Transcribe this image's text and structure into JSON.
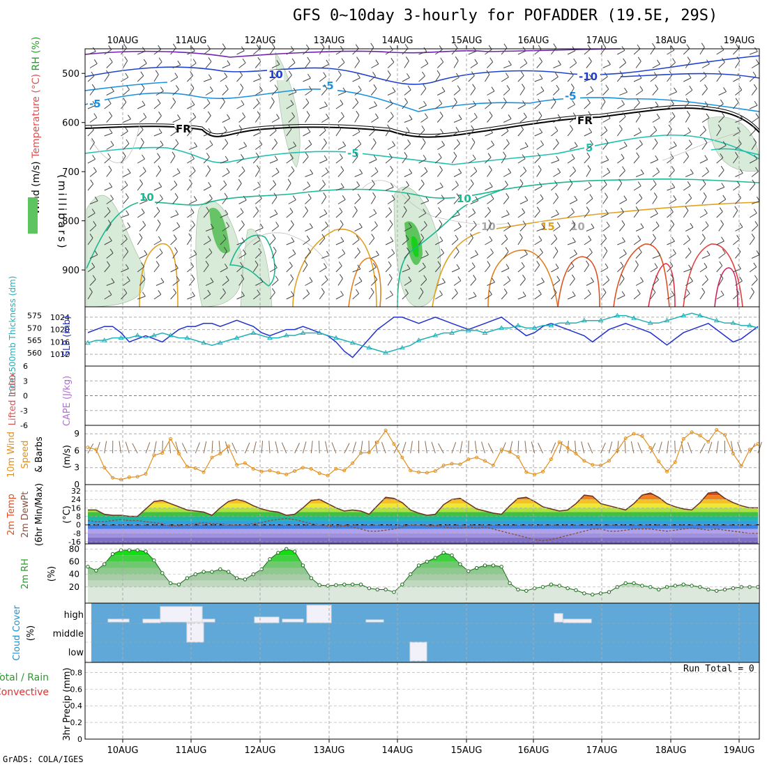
{
  "title": "GFS 0~10day 3-hourly for POFADDER (19.5E, 29S)",
  "credit": "GrADS: COLA/IGES",
  "run_total": "Run Total = 0",
  "colors": {
    "grid": "#aaaaaa",
    "wind_barb": "#444444",
    "slp": "#2030d0",
    "thickness": "#20b0b8",
    "li_zero": "#e05050",
    "wind10": "#e09020",
    "dew": "#8a5040",
    "rh": "#2a9a2a",
    "cloud_bg": "#5fa8d8",
    "cloud_fill": "#f2f0f8"
  },
  "chart_data": [
    {
      "panel": "vertical-profile",
      "type": "contour",
      "ylabel_parts": [
        {
          "text": "Wind (m/s)",
          "color": "#000000"
        },
        {
          "text": "Temperature (°C)",
          "color": "#e05050"
        },
        {
          "text": "RH (%)",
          "color": "#2a9a2a"
        }
      ],
      "unit_label": "(millibars)",
      "x_top_ticks": [
        "10AUG",
        "11AUG",
        "12AUG",
        "13AUG",
        "14AUG",
        "15AUG",
        "16AUG",
        "17AUG",
        "18AUG",
        "19AUG"
      ],
      "y_ticks": [
        500,
        600,
        700,
        800,
        900
      ],
      "contour_labels": [
        "10",
        "-10",
        "-5",
        "-5",
        "-5",
        "FR",
        "FR",
        "5",
        "-5",
        "10",
        "10",
        "15",
        "10",
        "10"
      ],
      "freezing_level_hpa": [
        610,
        612,
        608,
        620,
        606,
        604,
        610,
        605,
        618,
        614,
        600,
        612,
        600,
        585,
        580,
        570,
        575,
        590,
        610
      ]
    },
    {
      "panel": "slp-thickness",
      "type": "line",
      "ylabel_left": "1000-500mb Thickness (dm)",
      "ylabel_right": "SLP (mb)",
      "y_ticks_left": [
        560,
        565,
        570,
        575
      ],
      "y_ticks_right": [
        1012,
        1016,
        1020,
        1024
      ],
      "series": [
        {
          "name": "SLP (mb)",
          "axis": "right",
          "values": [
            1019,
            1020,
            1021,
            1021,
            1019,
            1016,
            1017,
            1018,
            1017,
            1016,
            1018,
            1020,
            1021,
            1021,
            1022,
            1022,
            1021,
            1022,
            1023,
            1022,
            1021,
            1019,
            1018,
            1019,
            1020,
            1020,
            1021,
            1020,
            1019,
            1018,
            1016,
            1013,
            1011,
            1014,
            1017,
            1020,
            1022,
            1024,
            1024,
            1023,
            1022,
            1023,
            1024,
            1023,
            1022,
            1021,
            1020,
            1021,
            1022,
            1023,
            1024,
            1022,
            1020,
            1018,
            1019,
            1021,
            1022,
            1021,
            1020,
            1019,
            1018,
            1016,
            1018,
            1020,
            1021,
            1022,
            1021,
            1020,
            1019,
            1017,
            1015,
            1017,
            1019,
            1020,
            1021,
            1022,
            1020,
            1018,
            1016,
            1017,
            1019,
            1021
          ]
        },
        {
          "name": "Thickness (dm)",
          "axis": "left",
          "values": [
            564,
            565,
            565,
            566,
            566,
            566,
            567,
            566,
            567,
            568,
            567,
            566,
            566,
            565,
            564,
            563,
            564,
            565,
            566,
            567,
            568,
            567,
            566,
            566,
            567,
            567,
            568,
            568,
            568,
            567,
            566,
            565,
            564,
            563,
            562,
            561,
            560,
            561,
            562,
            563,
            565,
            566,
            567,
            568,
            568,
            569,
            569,
            569,
            568,
            569,
            570,
            570,
            571,
            570,
            570,
            571,
            571,
            572,
            572,
            572,
            573,
            573,
            573,
            574,
            575,
            575,
            574,
            573,
            572,
            572,
            573,
            574,
            575,
            576,
            575,
            574,
            573,
            572,
            572,
            571,
            571,
            570
          ]
        }
      ]
    },
    {
      "panel": "li-cape",
      "type": "line",
      "ylabel_left": "Lifted Index",
      "ylabel_right": "CAPE (J/kg)",
      "y_ticks": [
        -6,
        -3,
        0,
        3,
        6
      ],
      "y_tick_labels": [
        "6",
        "3",
        "0",
        "-3",
        "-6"
      ],
      "series": [
        {
          "name": "Lifted Index",
          "values": []
        }
      ]
    },
    {
      "panel": "10m-wind",
      "type": "line",
      "ylabel": "10m Wind Speed & Barbs (m/s)",
      "y_ticks": [
        0,
        3,
        6,
        9
      ],
      "series": [
        {
          "name": "10m Wind Speed",
          "values": [
            6.6,
            6.2,
            3.0,
            1.2,
            0.9,
            1.3,
            1.4,
            1.9,
            5.2,
            5.6,
            8.1,
            5.5,
            3.2,
            2.9,
            2.2,
            4.8,
            5.5,
            6.8,
            3.5,
            3.8,
            2.8,
            2.3,
            2.5,
            2.1,
            1.8,
            2.4,
            3.0,
            2.8,
            2.0,
            1.6,
            2.8,
            2.5,
            3.8,
            5.6,
            5.7,
            7.5,
            9.6,
            7.2,
            4.8,
            2.5,
            2.2,
            2.1,
            2.4,
            3.4,
            3.7,
            3.6,
            4.5,
            4.8,
            4.2,
            3.4,
            6.2,
            5.8,
            4.9,
            2.2,
            1.8,
            2.3,
            4.5,
            7.5,
            6.5,
            5.5,
            4.2,
            3.5,
            3.4,
            4.2,
            6.0,
            8.2,
            9.0,
            8.6,
            6.5,
            4.1,
            2.3,
            4.0,
            8.1,
            9.3,
            8.7,
            7.6,
            9.7,
            8.8,
            5.5,
            3.3,
            6.2,
            7.2
          ]
        }
      ]
    },
    {
      "panel": "2m-temp-dewpt",
      "type": "area",
      "ylabel": "2m Temp 2m DewPt (6hr Min/Max) (°C)",
      "y_ticks": [
        -16,
        -8,
        0,
        8,
        16,
        24,
        32
      ],
      "series": [
        {
          "name": "2m Temp",
          "values": [
            14,
            14,
            10,
            9,
            9,
            8,
            8,
            15,
            22,
            23,
            20,
            17,
            14,
            13,
            12,
            9,
            16,
            22,
            24,
            22,
            18,
            15,
            13,
            12,
            9,
            10,
            16,
            23,
            24,
            20,
            16,
            13,
            14,
            13,
            10,
            18,
            26,
            25,
            21,
            14,
            11,
            9,
            10,
            19,
            24,
            25,
            20,
            15,
            13,
            11,
            10,
            18,
            25,
            26,
            22,
            17,
            15,
            13,
            14,
            20,
            28,
            27,
            20,
            18,
            16,
            14,
            20,
            28,
            30,
            26,
            20,
            17,
            15,
            14,
            21,
            30,
            31,
            25,
            21,
            18,
            16,
            16
          ]
        },
        {
          "name": "2m DewPt",
          "values": [
            4,
            3,
            3,
            4,
            5,
            4,
            4,
            3,
            2,
            1,
            -1,
            -1,
            0,
            1,
            2,
            1,
            1,
            0,
            0,
            0,
            1,
            2,
            4,
            5,
            6,
            5,
            3,
            1,
            0,
            -1,
            -2,
            -1,
            -2,
            -4,
            -6,
            -6,
            -5,
            -4,
            -2,
            0,
            0,
            -1,
            -1,
            -2,
            -3,
            -3,
            -2,
            -3,
            -2,
            -4,
            -6,
            -8,
            -10,
            -12,
            -14,
            -15,
            -14,
            -12,
            -10,
            -8,
            -6,
            -4,
            -4,
            -6,
            -6,
            -5,
            -4,
            -4,
            -4,
            -5,
            -6,
            -5,
            -4,
            -3,
            -4,
            -5,
            -4,
            -5,
            -6,
            -7,
            -8,
            -8
          ]
        }
      ]
    },
    {
      "panel": "2m-rh",
      "type": "area",
      "ylabel": "2m RH (%)",
      "y_ticks": [
        20,
        40,
        60,
        80
      ],
      "series": [
        {
          "name": "2m RH",
          "values": [
            52,
            46,
            56,
            72,
            78,
            78,
            78,
            76,
            62,
            42,
            26,
            24,
            34,
            40,
            44,
            44,
            48,
            44,
            34,
            32,
            40,
            48,
            64,
            74,
            80,
            76,
            54,
            34,
            23,
            22,
            23,
            24,
            24,
            24,
            18,
            16,
            16,
            12,
            24,
            40,
            54,
            60,
            66,
            74,
            70,
            56,
            45,
            50,
            54,
            54,
            52,
            26,
            16,
            14,
            18,
            20,
            24,
            22,
            18,
            15,
            10,
            8,
            10,
            12,
            20,
            26,
            26,
            22,
            20,
            16,
            20,
            22,
            24,
            22,
            20,
            16,
            14,
            16,
            18,
            20,
            20,
            20
          ]
        }
      ]
    },
    {
      "panel": "cloud-cover",
      "type": "heatmap",
      "ylabel": "Cloud Cover (%)",
      "rows": [
        "high",
        "middle",
        "low"
      ]
    },
    {
      "panel": "precip",
      "type": "bar",
      "ylabel": "Total / Rain Convective 3hr Precip (mm)",
      "ylabel_parts": [
        {
          "text": "Total / Rain",
          "color": "#2a9a2a"
        },
        {
          "text": "Convective",
          "color": "#e03030"
        },
        {
          "text": "3hr Precip (mm)",
          "color": "#000000"
        }
      ],
      "y_ticks": [
        0,
        0.2,
        0.4,
        0.6,
        0.8
      ],
      "y_tick_labels": [
        "0",
        "0.2",
        "0.4",
        "0.6",
        "0.8"
      ],
      "x_bottom_ticks": [
        "10AUG",
        "11AUG",
        "12AUG",
        "13AUG",
        "14AUG",
        "15AUG",
        "16AUG",
        "17AUG",
        "18AUG",
        "19AUG"
      ],
      "values": []
    }
  ]
}
